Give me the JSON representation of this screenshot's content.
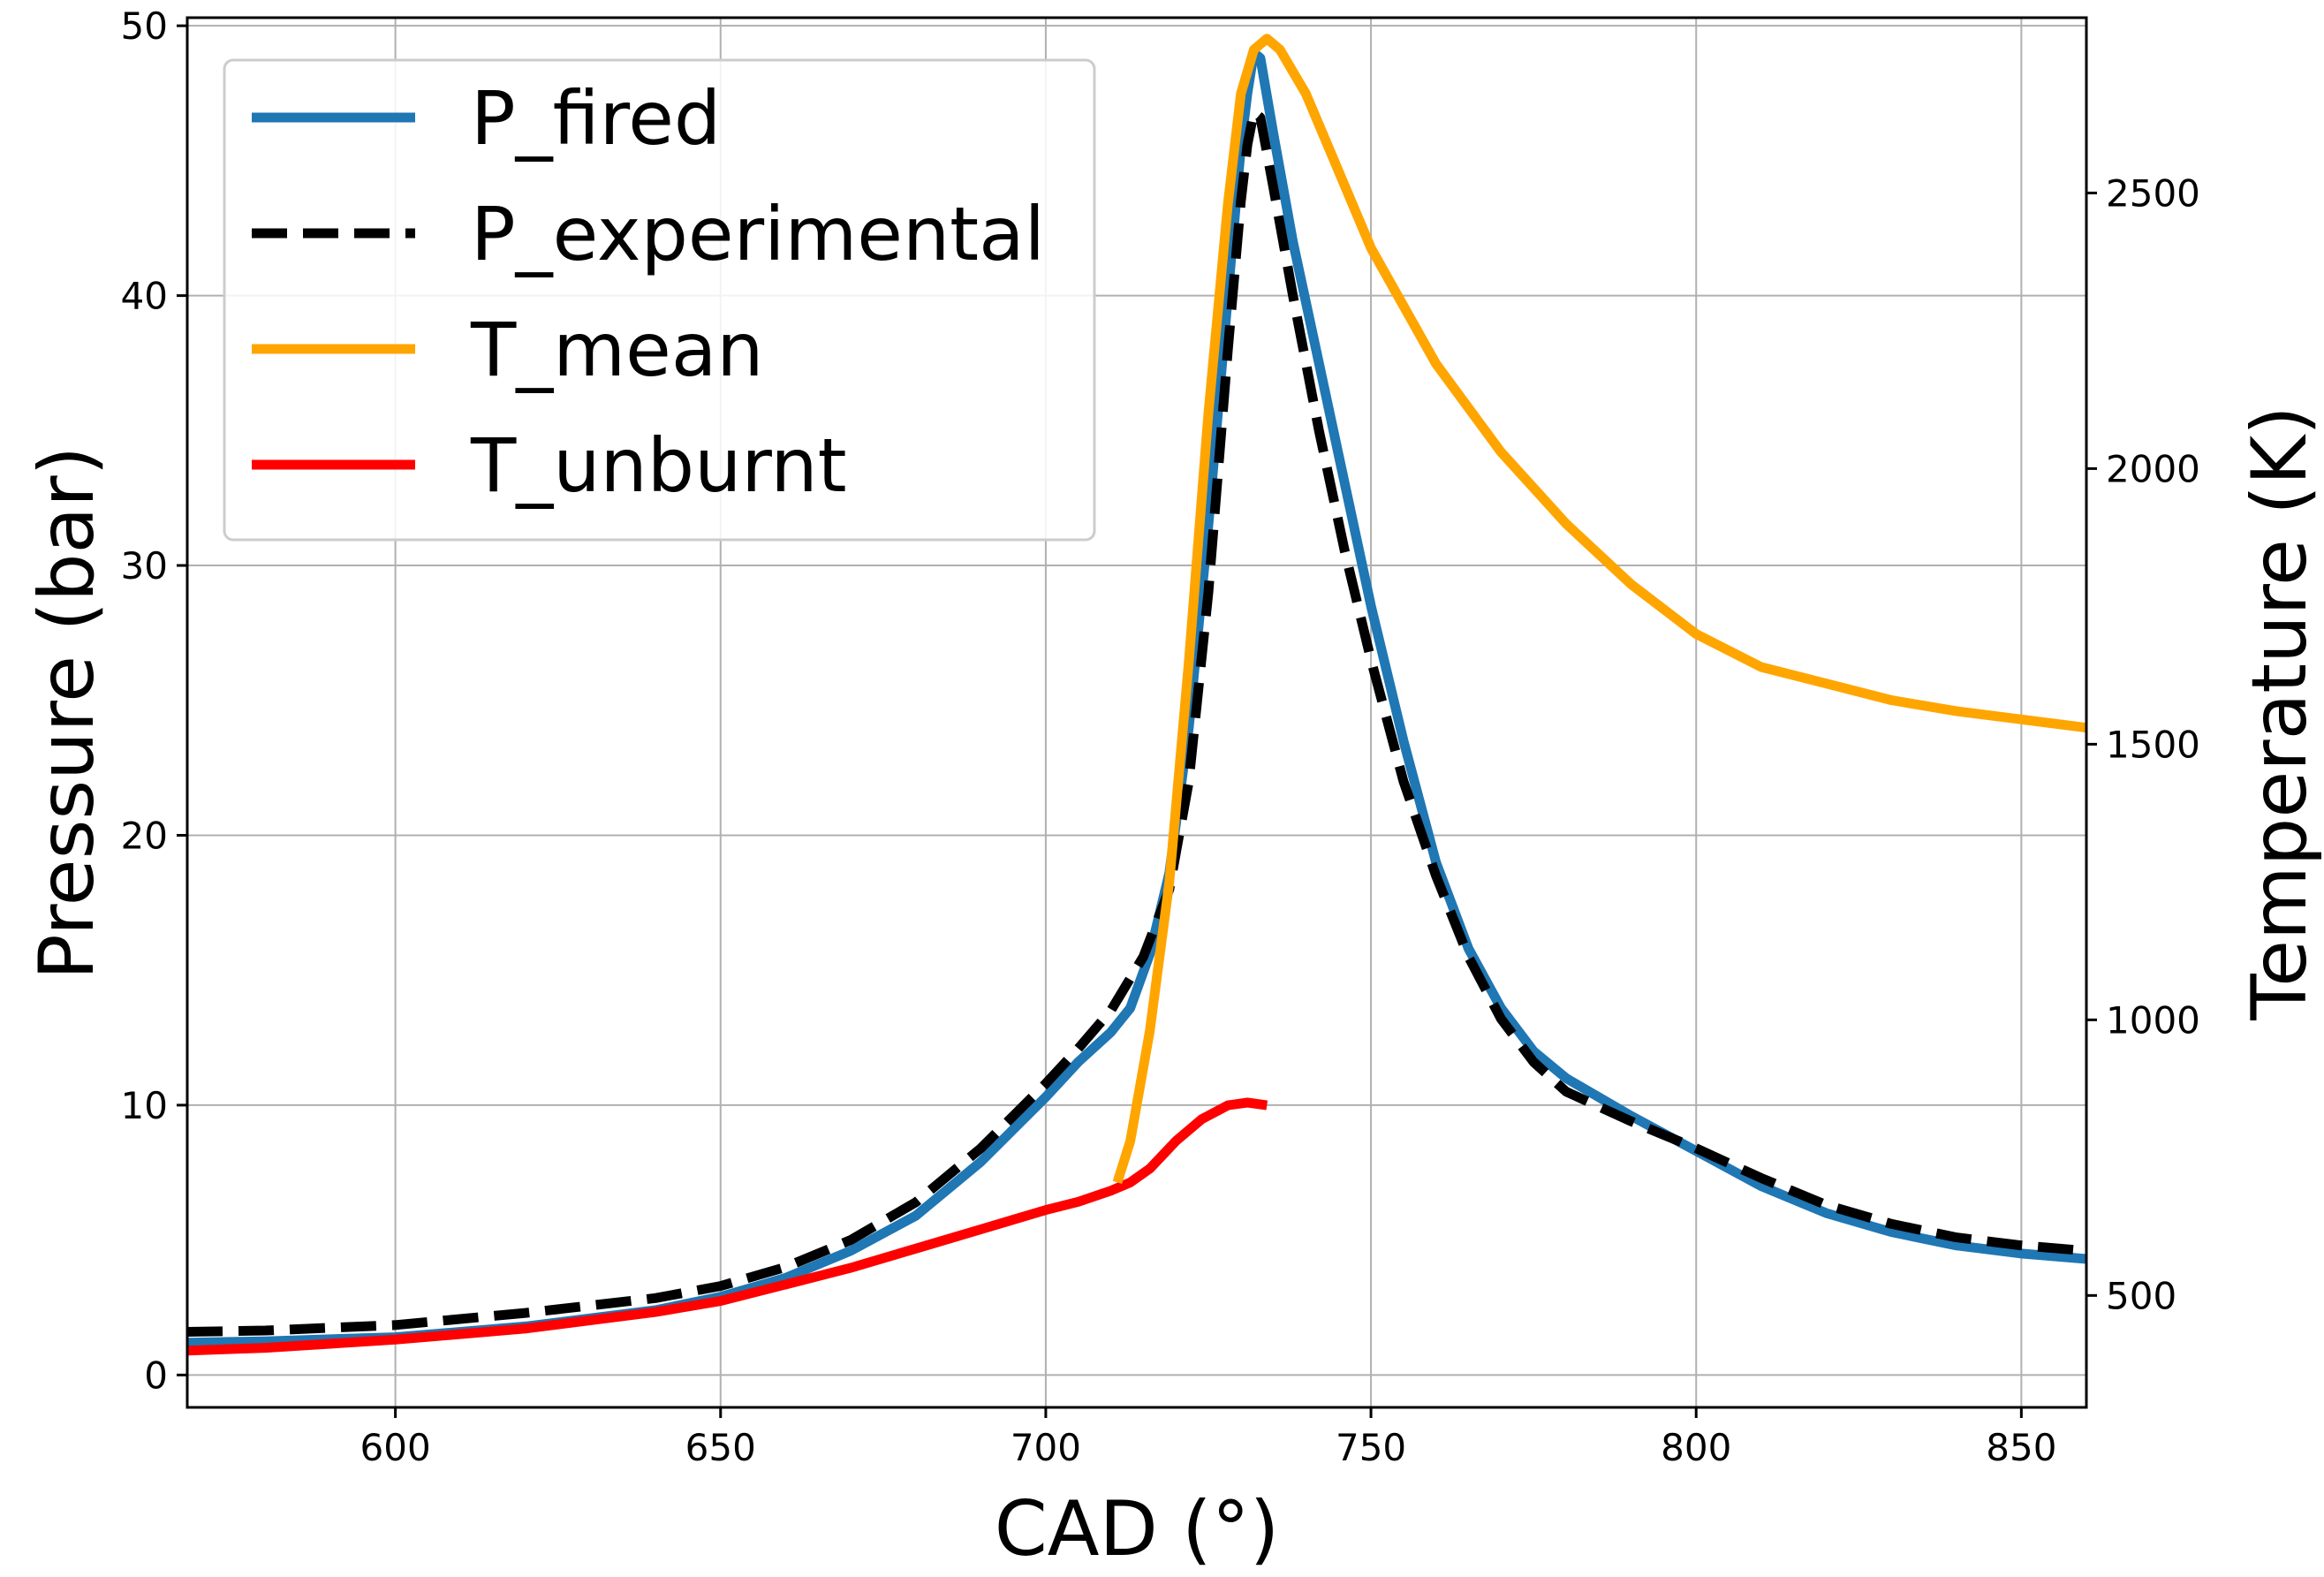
{
  "chart_data": {
    "type": "line",
    "xlabel": "CAD (°)",
    "ylabel": "Pressure (bar)",
    "y2label": "Temperature (K)",
    "xlim": [
      568,
      860
    ],
    "ylim": [
      -1.2,
      50.3
    ],
    "y2lim": [
      297,
      2818
    ],
    "xticks": [
      600,
      650,
      700,
      750,
      800,
      850
    ],
    "yticks": [
      0,
      10,
      20,
      30,
      40,
      50
    ],
    "y2ticks": [
      500,
      1000,
      1500,
      2000,
      2500
    ],
    "grid": true,
    "legend_position": "top-left",
    "series": [
      {
        "name": "P_fired",
        "axis": "left",
        "color": "#1f77b4",
        "style": "solid",
        "points": [
          [
            568,
            1.2
          ],
          [
            580,
            1.25
          ],
          [
            600,
            1.4
          ],
          [
            620,
            1.8
          ],
          [
            640,
            2.4
          ],
          [
            650,
            2.9
          ],
          [
            660,
            3.6
          ],
          [
            670,
            4.6
          ],
          [
            680,
            5.9
          ],
          [
            690,
            7.9
          ],
          [
            700,
            10.3
          ],
          [
            705,
            11.6
          ],
          [
            710,
            12.7
          ],
          [
            713,
            13.6
          ],
          [
            716,
            15.6
          ],
          [
            719,
            18.6
          ],
          [
            722,
            24.0
          ],
          [
            725,
            31.5
          ],
          [
            728,
            40.0
          ],
          [
            730,
            45.5
          ],
          [
            731,
            47.5
          ],
          [
            732,
            49.0
          ],
          [
            733,
            48.8
          ],
          [
            735,
            46.0
          ],
          [
            738,
            42.0
          ],
          [
            742,
            37.5
          ],
          [
            746,
            33.0
          ],
          [
            750,
            28.5
          ],
          [
            755,
            23.5
          ],
          [
            760,
            19.0
          ],
          [
            765,
            15.8
          ],
          [
            770,
            13.6
          ],
          [
            775,
            12.0
          ],
          [
            780,
            11.0
          ],
          [
            790,
            9.6
          ],
          [
            800,
            8.3
          ],
          [
            810,
            7.0
          ],
          [
            820,
            6.0
          ],
          [
            830,
            5.3
          ],
          [
            840,
            4.8
          ],
          [
            850,
            4.5
          ],
          [
            860,
            4.3
          ]
        ]
      },
      {
        "name": "P_experimental",
        "axis": "left",
        "color": "#000000",
        "style": "dashed",
        "points": [
          [
            568,
            1.6
          ],
          [
            580,
            1.65
          ],
          [
            600,
            1.85
          ],
          [
            620,
            2.3
          ],
          [
            640,
            2.85
          ],
          [
            650,
            3.3
          ],
          [
            660,
            4.0
          ],
          [
            670,
            5.0
          ],
          [
            680,
            6.4
          ],
          [
            690,
            8.4
          ],
          [
            700,
            10.8
          ],
          [
            705,
            12.1
          ],
          [
            710,
            13.5
          ],
          [
            715,
            15.5
          ],
          [
            719,
            18.0
          ],
          [
            722,
            22.0
          ],
          [
            725,
            29.0
          ],
          [
            728,
            38.0
          ],
          [
            730,
            43.5
          ],
          [
            731,
            45.6
          ],
          [
            732,
            46.8
          ],
          [
            733,
            46.6
          ],
          [
            735,
            44.0
          ],
          [
            738,
            40.0
          ],
          [
            742,
            35.0
          ],
          [
            746,
            30.5
          ],
          [
            750,
            26.5
          ],
          [
            755,
            22.0
          ],
          [
            760,
            18.5
          ],
          [
            765,
            15.5
          ],
          [
            770,
            13.2
          ],
          [
            775,
            11.6
          ],
          [
            780,
            10.5
          ],
          [
            790,
            9.4
          ],
          [
            800,
            8.4
          ],
          [
            810,
            7.3
          ],
          [
            820,
            6.3
          ],
          [
            830,
            5.6
          ],
          [
            840,
            5.1
          ],
          [
            850,
            4.8
          ],
          [
            860,
            4.6
          ]
        ]
      },
      {
        "name": "T_mean",
        "axis": "right",
        "color": "#ffa500",
        "style": "solid",
        "points": [
          [
            711,
            705
          ],
          [
            713,
            780
          ],
          [
            716,
            980
          ],
          [
            719,
            1250
          ],
          [
            722,
            1650
          ],
          [
            725,
            2100
          ],
          [
            728,
            2480
          ],
          [
            730,
            2680
          ],
          [
            732,
            2760
          ],
          [
            734,
            2780
          ],
          [
            736,
            2760
          ],
          [
            740,
            2680
          ],
          [
            745,
            2540
          ],
          [
            750,
            2400
          ],
          [
            760,
            2190
          ],
          [
            770,
            2030
          ],
          [
            780,
            1900
          ],
          [
            790,
            1790
          ],
          [
            800,
            1700
          ],
          [
            810,
            1640
          ],
          [
            820,
            1610
          ],
          [
            830,
            1580
          ],
          [
            840,
            1560
          ],
          [
            850,
            1545
          ],
          [
            860,
            1530
          ]
        ]
      },
      {
        "name": "T_unburnt",
        "axis": "right",
        "color": "#ff0000",
        "style": "solid",
        "points": [
          [
            568,
            400
          ],
          [
            580,
            405
          ],
          [
            600,
            420
          ],
          [
            620,
            440
          ],
          [
            640,
            470
          ],
          [
            650,
            490
          ],
          [
            660,
            520
          ],
          [
            670,
            550
          ],
          [
            680,
            585
          ],
          [
            690,
            620
          ],
          [
            700,
            655
          ],
          [
            705,
            670
          ],
          [
            710,
            690
          ],
          [
            713,
            705
          ],
          [
            716,
            730
          ],
          [
            720,
            780
          ],
          [
            724,
            820
          ],
          [
            728,
            845
          ],
          [
            731,
            850
          ],
          [
            734,
            845
          ]
        ]
      }
    ]
  }
}
